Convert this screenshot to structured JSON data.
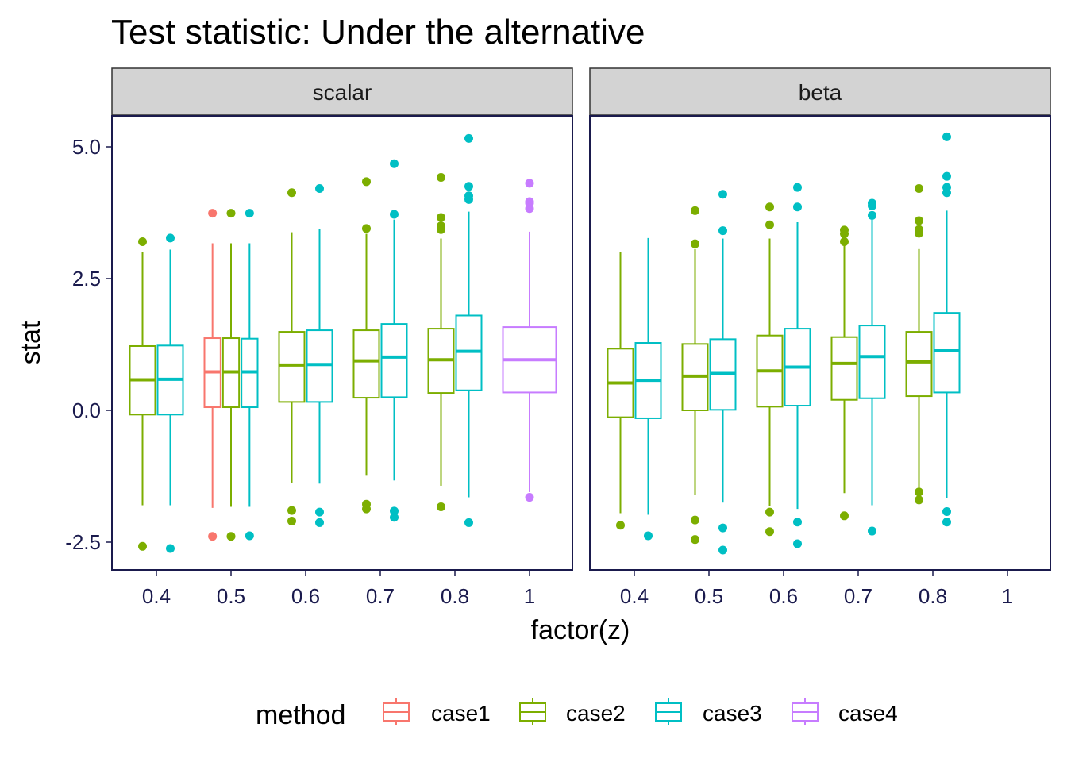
{
  "chart_data": {
    "type": "boxplot",
    "title": "Test statistic: Under the alternative",
    "xlabel": "factor(z)",
    "ylabel": "stat",
    "categories": [
      "0.4",
      "0.5",
      "0.6",
      "0.7",
      "0.8",
      "1"
    ],
    "ylim": [
      -2.8,
      5.5
    ],
    "yticks": [
      -2.5,
      0.0,
      2.5,
      5.0
    ],
    "ytick_labels": [
      "-2.5",
      "0.0",
      "2.5",
      "5.0"
    ],
    "grid": false,
    "legend": {
      "title": "method",
      "position": "bottom",
      "entries": [
        {
          "name": "case1",
          "color": "#F8766D"
        },
        {
          "name": "case2",
          "color": "#7CAE00"
        },
        {
          "name": "case3",
          "color": "#00BFC4"
        },
        {
          "name": "case4",
          "color": "#C77CFF"
        }
      ]
    },
    "panels": [
      {
        "name": "scalar",
        "boxes": [
          {
            "category": "0.4",
            "method": "case2",
            "group_index": 0,
            "group_count": 2,
            "low": -1.8,
            "q1": -0.08,
            "median": 0.58,
            "q3": 1.22,
            "high": 3.0,
            "outliers": [
              3.2,
              -2.58
            ]
          },
          {
            "category": "0.4",
            "method": "case3",
            "group_index": 1,
            "group_count": 2,
            "low": -1.8,
            "q1": -0.08,
            "median": 0.59,
            "q3": 1.23,
            "high": 3.05,
            "outliers": [
              3.27,
              -2.62
            ]
          },
          {
            "category": "0.5",
            "method": "case1",
            "group_index": 0,
            "group_count": 3,
            "low": -1.85,
            "q1": 0.06,
            "median": 0.73,
            "q3": 1.37,
            "high": 3.17,
            "outliers": [
              3.74,
              -2.39
            ]
          },
          {
            "category": "0.5",
            "method": "case2",
            "group_index": 1,
            "group_count": 3,
            "low": -1.83,
            "q1": 0.06,
            "median": 0.73,
            "q3": 1.37,
            "high": 3.17,
            "outliers": [
              3.74,
              -2.39
            ]
          },
          {
            "category": "0.5",
            "method": "case3",
            "group_index": 2,
            "group_count": 3,
            "low": -1.83,
            "q1": 0.06,
            "median": 0.73,
            "q3": 1.36,
            "high": 3.17,
            "outliers": [
              3.74,
              -2.38
            ]
          },
          {
            "category": "0.6",
            "method": "case2",
            "group_index": 0,
            "group_count": 2,
            "low": -1.37,
            "q1": 0.16,
            "median": 0.86,
            "q3": 1.49,
            "high": 3.38,
            "outliers": [
              4.13,
              -1.9,
              -2.1
            ]
          },
          {
            "category": "0.6",
            "method": "case3",
            "group_index": 1,
            "group_count": 2,
            "low": -1.39,
            "q1": 0.16,
            "median": 0.87,
            "q3": 1.52,
            "high": 3.44,
            "outliers": [
              4.21,
              -1.93,
              -2.13
            ]
          },
          {
            "category": "0.7",
            "method": "case2",
            "group_index": 0,
            "group_count": 2,
            "low": -1.24,
            "q1": 0.24,
            "median": 0.94,
            "q3": 1.52,
            "high": 3.35,
            "outliers": [
              4.34,
              3.45,
              -1.78,
              -1.87
            ]
          },
          {
            "category": "0.7",
            "method": "case3",
            "group_index": 1,
            "group_count": 2,
            "low": -1.33,
            "q1": 0.25,
            "median": 1.01,
            "q3": 1.64,
            "high": 3.62,
            "outliers": [
              4.68,
              3.72,
              -1.91,
              -2.03
            ]
          },
          {
            "category": "0.8",
            "method": "case2",
            "group_index": 0,
            "group_count": 2,
            "low": -1.43,
            "q1": 0.33,
            "median": 0.96,
            "q3": 1.55,
            "high": 3.26,
            "outliers": [
              4.42,
              3.66,
              3.5,
              3.43,
              -1.83
            ]
          },
          {
            "category": "0.8",
            "method": "case3",
            "group_index": 1,
            "group_count": 2,
            "low": -1.65,
            "q1": 0.38,
            "median": 1.12,
            "q3": 1.8,
            "high": 3.77,
            "outliers": [
              5.16,
              4.25,
              4.07,
              4.0,
              -2.13
            ]
          },
          {
            "category": "1",
            "method": "case4",
            "group_index": 0,
            "group_count": 1,
            "low": -1.55,
            "q1": 0.34,
            "median": 0.96,
            "q3": 1.58,
            "high": 3.39,
            "outliers": [
              4.31,
              3.96,
              3.93,
              3.83,
              -1.65
            ]
          }
        ]
      },
      {
        "name": "beta",
        "boxes": [
          {
            "category": "0.4",
            "method": "case2",
            "group_index": 0,
            "group_count": 2,
            "low": -1.95,
            "q1": -0.13,
            "median": 0.52,
            "q3": 1.17,
            "high": 3.0,
            "outliers": [
              -2.18
            ]
          },
          {
            "category": "0.4",
            "method": "case3",
            "group_index": 1,
            "group_count": 2,
            "low": -1.98,
            "q1": -0.15,
            "median": 0.57,
            "q3": 1.28,
            "high": 3.27,
            "outliers": [
              -2.38
            ]
          },
          {
            "category": "0.5",
            "method": "case2",
            "group_index": 0,
            "group_count": 2,
            "low": -1.6,
            "q1": 0.0,
            "median": 0.65,
            "q3": 1.26,
            "high": 3.06,
            "outliers": [
              3.79,
              3.16,
              -2.08,
              -2.45
            ]
          },
          {
            "category": "0.5",
            "method": "case3",
            "group_index": 1,
            "group_count": 2,
            "low": -1.75,
            "q1": 0.01,
            "median": 0.7,
            "q3": 1.35,
            "high": 3.26,
            "outliers": [
              4.1,
              3.41,
              -2.23,
              -2.65
            ]
          },
          {
            "category": "0.6",
            "method": "case2",
            "group_index": 0,
            "group_count": 2,
            "low": -1.82,
            "q1": 0.07,
            "median": 0.75,
            "q3": 1.42,
            "high": 3.26,
            "outliers": [
              3.86,
              3.52,
              -1.93,
              -2.3
            ]
          },
          {
            "category": "0.6",
            "method": "case3",
            "group_index": 1,
            "group_count": 2,
            "low": -1.87,
            "q1": 0.09,
            "median": 0.82,
            "q3": 1.55,
            "high": 3.57,
            "outliers": [
              4.23,
              3.86,
              -2.12,
              -2.53
            ]
          },
          {
            "category": "0.7",
            "method": "case2",
            "group_index": 0,
            "group_count": 2,
            "low": -1.57,
            "q1": 0.2,
            "median": 0.89,
            "q3": 1.39,
            "high": 3.2,
            "outliers": [
              3.42,
              3.35,
              3.2,
              -2.0
            ]
          },
          {
            "category": "0.7",
            "method": "case3",
            "group_index": 1,
            "group_count": 2,
            "low": -1.8,
            "q1": 0.23,
            "median": 1.02,
            "q3": 1.61,
            "high": 3.62,
            "outliers": [
              3.93,
              3.88,
              3.7,
              -2.29
            ]
          },
          {
            "category": "0.8",
            "method": "case2",
            "group_index": 0,
            "group_count": 2,
            "low": -1.5,
            "q1": 0.27,
            "median": 0.92,
            "q3": 1.49,
            "high": 3.06,
            "outliers": [
              4.21,
              3.6,
              3.43,
              3.36,
              -1.55,
              -1.7
            ]
          },
          {
            "category": "0.8",
            "method": "case3",
            "group_index": 1,
            "group_count": 2,
            "low": -1.67,
            "q1": 0.34,
            "median": 1.13,
            "q3": 1.85,
            "high": 3.79,
            "outliers": [
              5.19,
              4.44,
              4.23,
              4.13,
              -1.92,
              -2.12
            ]
          }
        ]
      }
    ]
  }
}
